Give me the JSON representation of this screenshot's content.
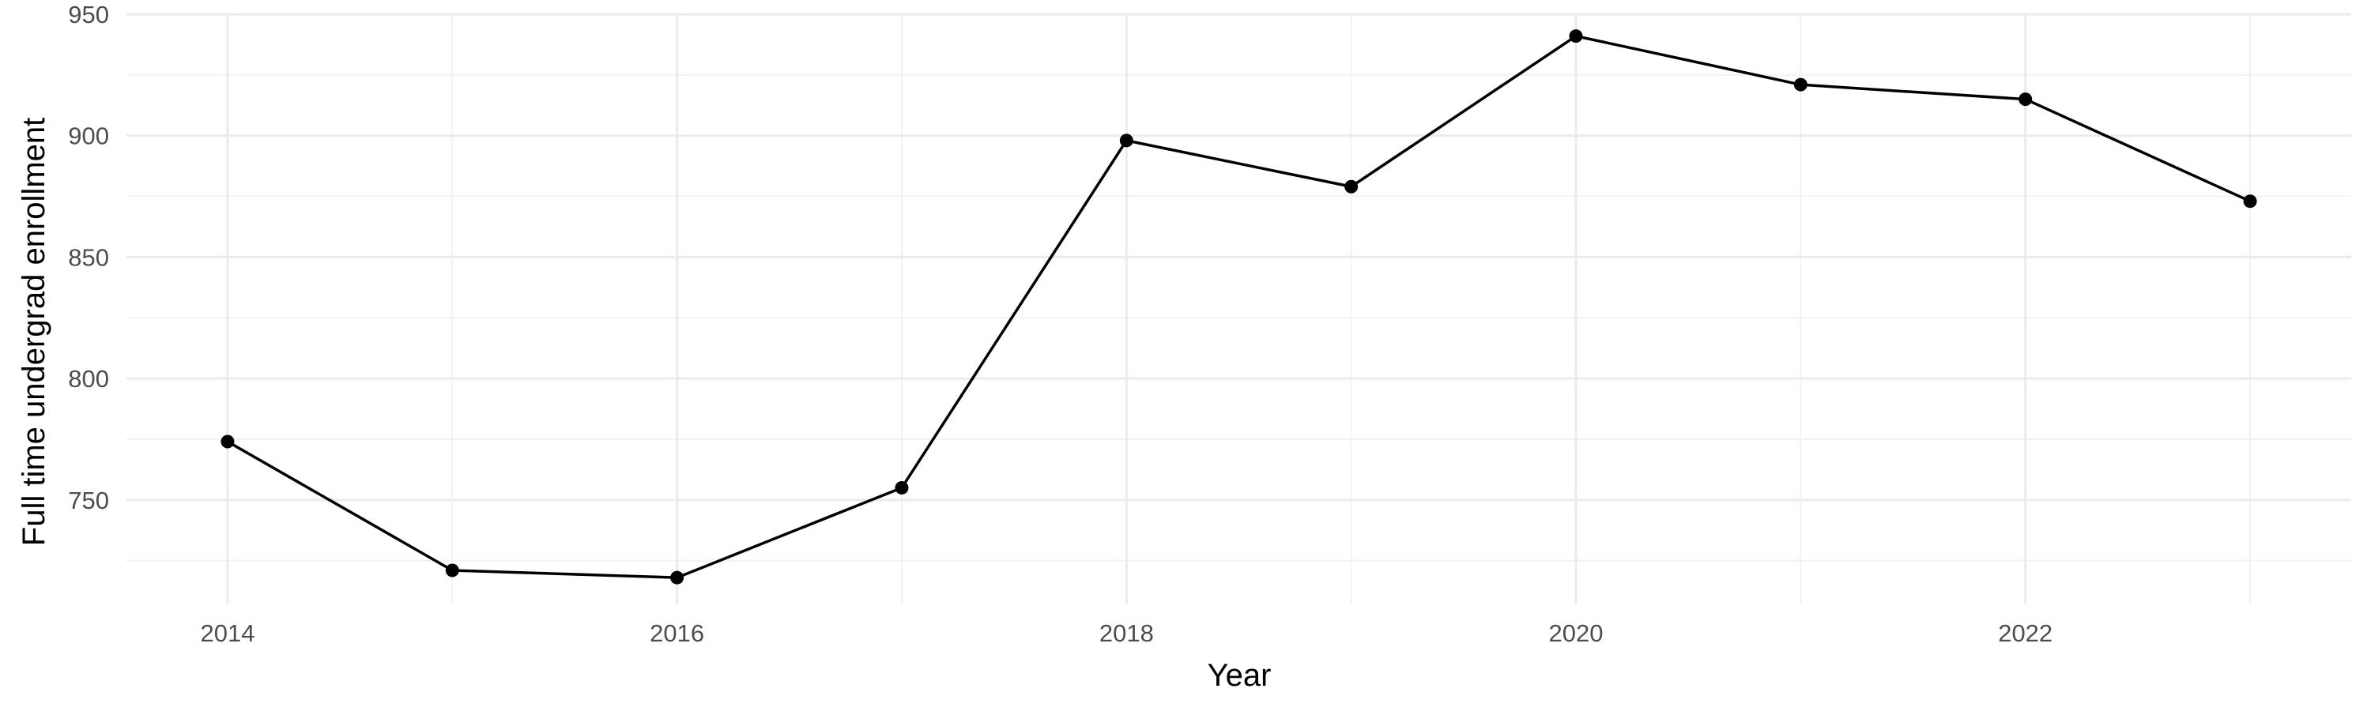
{
  "chart_data": {
    "type": "line",
    "title": "",
    "xlabel": "Year",
    "ylabel": "Full time undergrad enrollment",
    "x": [
      2014,
      2015,
      2016,
      2017,
      2018,
      2019,
      2020,
      2021,
      2022,
      2023
    ],
    "series": [
      {
        "values": [
          774,
          721,
          718,
          755,
          898,
          879,
          941,
          921,
          915,
          873
        ]
      }
    ],
    "xlim": [
      2013.55,
      2023.45
    ],
    "ylim": [
      707,
      950
    ],
    "x_ticks": [
      2014,
      2016,
      2018,
      2020,
      2022
    ],
    "x_tick_labels": [
      "2014",
      "2016",
      "2018",
      "2020",
      "2022"
    ],
    "y_ticks": [
      750,
      800,
      850,
      900,
      950
    ],
    "y_tick_labels": [
      "750",
      "800",
      "850",
      "900",
      "950"
    ],
    "grid": true,
    "legend": "none",
    "colors": {
      "line": "#000000",
      "point": "#000000",
      "grid_major": "#ebebeb",
      "grid_minor": "#f2f2f2",
      "tick_text": "#4d4d4d"
    }
  }
}
